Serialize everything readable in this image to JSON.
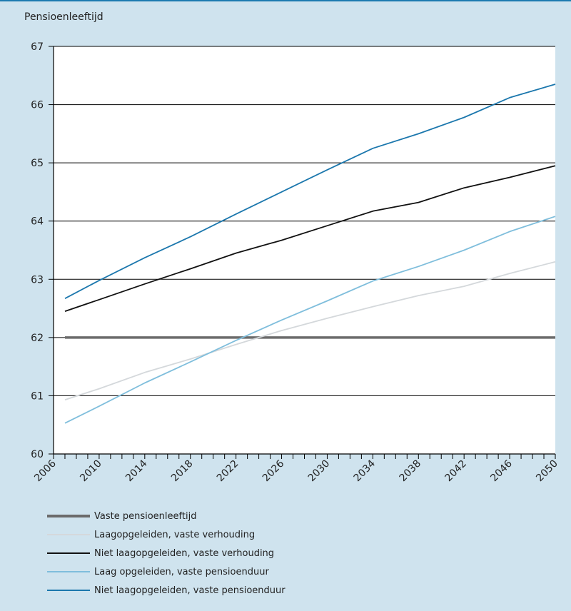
{
  "chart_data": {
    "type": "line",
    "ylabel": "Pensioenleeftijd",
    "ylim": [
      60,
      67
    ],
    "xlim": [
      2006,
      2050
    ],
    "yticks": [
      60,
      61,
      62,
      63,
      64,
      65,
      66,
      67
    ],
    "xticks": [
      2006,
      2010,
      2014,
      2018,
      2022,
      2026,
      2030,
      2034,
      2038,
      2042,
      2046,
      2050
    ],
    "grid": "horizontal",
    "legend_position": "bottom",
    "series": [
      {
        "name": "Vaste pensioenleeftijd",
        "color": "#6b6b6b",
        "x": [
          2007,
          2050
        ],
        "y": [
          62.0,
          62.0
        ]
      },
      {
        "name": "Laagopgeleiden, vaste verhouding",
        "color": "#d4d8db",
        "x": [
          2007,
          2010,
          2014,
          2018,
          2022,
          2026,
          2030,
          2034,
          2038,
          2042,
          2046,
          2050
        ],
        "y": [
          60.93,
          61.12,
          61.4,
          61.63,
          61.88,
          62.12,
          62.33,
          62.53,
          62.72,
          62.88,
          63.1,
          63.3
        ]
      },
      {
        "name": "Niet laagopgeleiden, vaste verhouding",
        "color": "#111111",
        "x": [
          2007,
          2010,
          2014,
          2018,
          2022,
          2026,
          2030,
          2034,
          2038,
          2042,
          2046,
          2050
        ],
        "y": [
          62.45,
          62.65,
          62.92,
          63.18,
          63.45,
          63.67,
          63.92,
          64.17,
          64.32,
          64.57,
          64.75,
          64.95
        ]
      },
      {
        "name": "Laag opgeleiden, vaste pensioenduur",
        "color": "#7fbedc",
        "x": [
          2007,
          2010,
          2014,
          2018,
          2022,
          2026,
          2030,
          2034,
          2038,
          2042,
          2046,
          2050
        ],
        "y": [
          60.53,
          60.82,
          61.22,
          61.58,
          61.95,
          62.3,
          62.63,
          62.97,
          63.22,
          63.5,
          63.82,
          64.08
        ]
      },
      {
        "name": "Niet laagopgeleiden, vaste pensioenduur",
        "color": "#1b77ad",
        "x": [
          2007,
          2010,
          2014,
          2018,
          2022,
          2026,
          2030,
          2034,
          2038,
          2042,
          2046,
          2050
        ],
        "y": [
          62.67,
          62.98,
          63.37,
          63.73,
          64.12,
          64.5,
          64.88,
          65.25,
          65.5,
          65.78,
          66.12,
          66.35
        ]
      }
    ]
  }
}
